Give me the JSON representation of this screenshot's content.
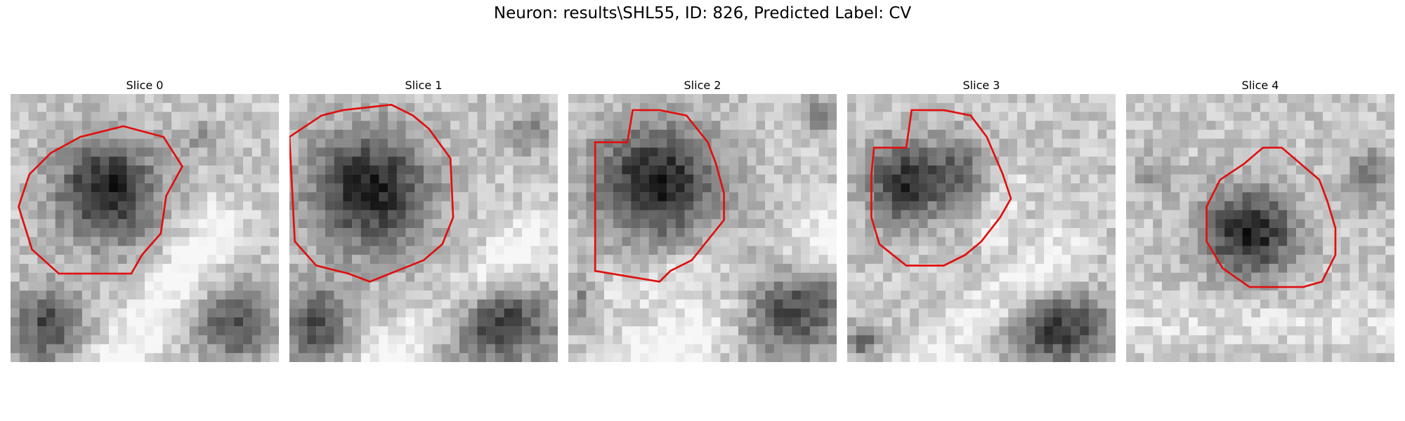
{
  "figure": {
    "title": "Neuron: results\\SHL55, ID: 826, Predicted Label: CV",
    "contour_color": "#e01010"
  },
  "panels": [
    {
      "title": "Slice 0"
    },
    {
      "title": "Slice 1"
    },
    {
      "title": "Slice 2"
    },
    {
      "title": "Slice 3"
    },
    {
      "title": "Slice 4"
    }
  ]
}
